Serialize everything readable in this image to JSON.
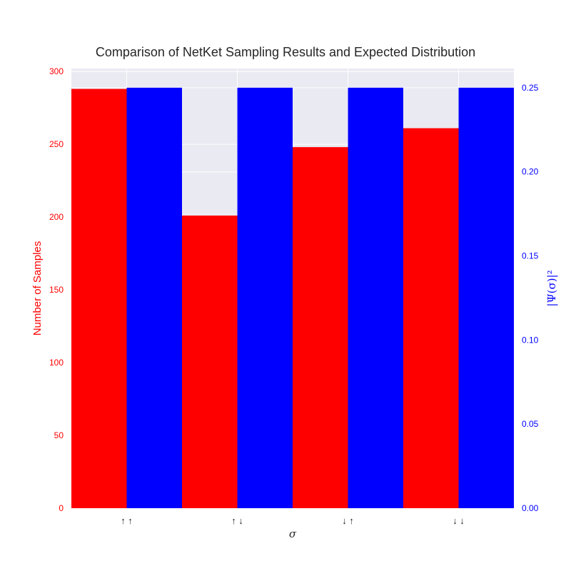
{
  "chart_data": {
    "type": "bar",
    "title": "Comparison of NetKet Sampling Results and Expected Distribution",
    "xlabel": "σ",
    "categories": [
      "↑ ↑",
      "↑ ↓",
      "↓ ↑",
      "↓ ↓"
    ],
    "series": [
      {
        "name": "",
        "axis": "left",
        "color": "#ff0000",
        "values": [
          288,
          201,
          248,
          261
        ]
      },
      {
        "name": "",
        "axis": "right",
        "color": "#0000ff",
        "values": [
          0.25,
          0.25,
          0.25,
          0.25
        ]
      }
    ],
    "ylabel_left": "Number of Samples",
    "ylabel_right": "|Ψ(σ)|²",
    "ylim_left": [
      0,
      302
    ],
    "ylim_right": [
      0,
      0.2614
    ],
    "yticks_left": [
      "0",
      "50",
      "100",
      "150",
      "200",
      "250",
      "300"
    ],
    "yticks_right": [
      "0.00",
      "0.05",
      "0.10",
      "0.15",
      "0.20",
      "0.25"
    ],
    "background": "#eaeaf2",
    "grid": true
  }
}
